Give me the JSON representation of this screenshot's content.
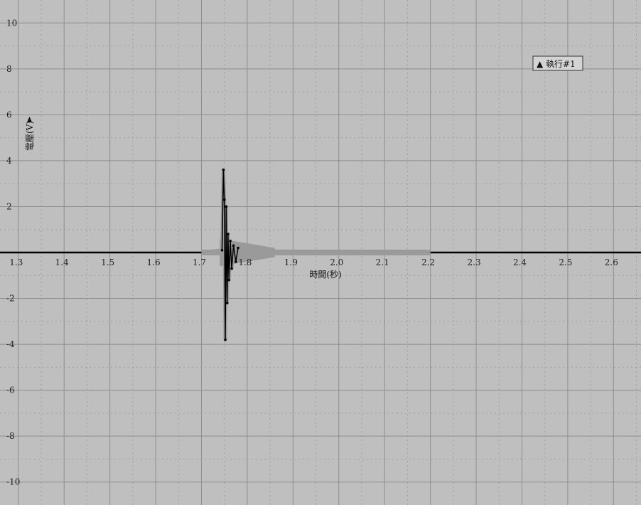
{
  "chart_data": {
    "type": "line",
    "title": "",
    "xlabel": "時間(秒)",
    "ylabel": "電壓(V)",
    "xlim": [
      1.26,
      2.66
    ],
    "ylim": [
      -11.0,
      11.0
    ],
    "x_ticks": [
      1.3,
      1.4,
      1.5,
      1.6,
      1.7,
      1.8,
      1.9,
      2.0,
      2.1,
      2.2,
      2.3,
      2.4,
      2.5,
      2.6
    ],
    "x_tick_labels": [
      "1.3",
      "1.4",
      "1.5",
      "1.6",
      "1.7",
      "1.8",
      "1.9",
      "2.0",
      "2.1",
      "2.2",
      "2.3",
      "2.4",
      "2.5",
      "2.6"
    ],
    "y_ticks": [
      -10,
      -8,
      -6,
      -4,
      -2,
      2,
      4,
      6,
      8,
      10
    ],
    "y_tick_labels": [
      "-10",
      "-8",
      "-6",
      "-4",
      "-2",
      "2",
      "4",
      "6",
      "8",
      "10"
    ],
    "grid": true,
    "legend": {
      "position": "top-right",
      "entries": [
        "▲ 執行#1"
      ]
    },
    "series": [
      {
        "name": "執行#1",
        "color": "#000000",
        "highlight_color": "#9a9a9a",
        "highlight_range": [
          1.7,
          2.2
        ],
        "x": [
          1.26,
          1.7,
          1.745,
          1.748,
          1.75,
          1.752,
          1.754,
          1.756,
          1.758,
          1.76,
          1.763,
          1.766,
          1.77,
          1.775,
          1.78,
          1.79,
          1.8,
          1.85,
          1.9,
          2.0,
          2.2,
          2.66
        ],
        "y": [
          0,
          0,
          0.1,
          3.6,
          2.3,
          -3.8,
          2.0,
          -2.2,
          0.8,
          -1.2,
          0.5,
          -0.7,
          0.3,
          -0.4,
          0.2,
          -0.2,
          0.1,
          0.05,
          0.05,
          0,
          0,
          0
        ]
      }
    ]
  }
}
